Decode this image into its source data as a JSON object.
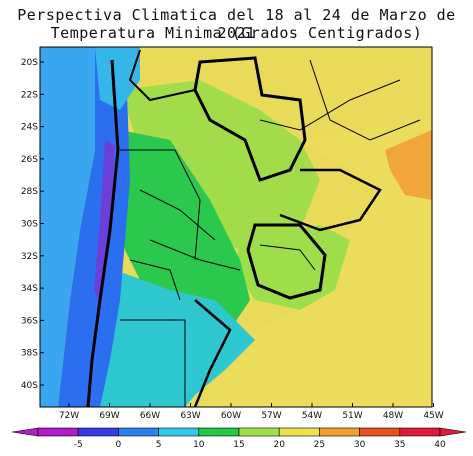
{
  "title_line1": "Perspectiva Climatica del 18 al 24 de Marzo de 2021",
  "title_line2": "Temperatura Minima (Grados Centigrados)",
  "lat_labels": [
    "20S",
    "22S",
    "24S",
    "26S",
    "28S",
    "30S",
    "32S",
    "34S",
    "36S",
    "38S",
    "40S"
  ],
  "lon_labels": [
    "72W",
    "69W",
    "66W",
    "63W",
    "60W",
    "57W",
    "54W",
    "51W",
    "48W",
    "45W"
  ],
  "colorbar": {
    "ticks": [
      "-5",
      "0",
      "5",
      "10",
      "15",
      "20",
      "25",
      "30",
      "35",
      "40"
    ],
    "colors": [
      "#b01cc8",
      "#3a3ce0",
      "#2c80f0",
      "#31c8e8",
      "#27c848",
      "#9fe04a",
      "#f0e050",
      "#f0a030",
      "#e85020",
      "#e01a3c"
    ]
  },
  "regions": {
    "ocean_pacific": "#3aa8f0",
    "andes": "#2c6cf0",
    "andes_high": "#6a40d8",
    "patagonia": "#2fc6d0",
    "pampas": "#29c84a",
    "north_dry": "#9cdc48",
    "tropics": "#e8d85a",
    "warm_coast": "#f0a33a",
    "atlantic": "#f0dc58",
    "uruguay_coast": "#9fe04a"
  }
}
